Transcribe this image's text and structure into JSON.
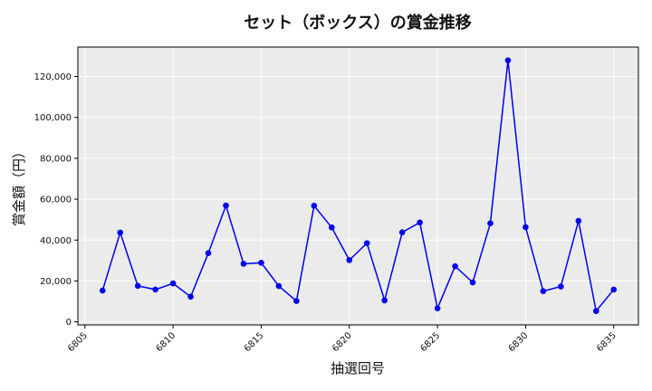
{
  "chart_data": {
    "type": "line",
    "title": "セット（ボックス）の賞金推移",
    "xlabel": "抽選回号",
    "ylabel": "賞金額（円）",
    "x": [
      6806,
      6807,
      6808,
      6809,
      6810,
      6811,
      6812,
      6813,
      6814,
      6815,
      6816,
      6817,
      6818,
      6819,
      6820,
      6821,
      6822,
      6823,
      6824,
      6825,
      6826,
      6827,
      6828,
      6829,
      6830,
      6831,
      6832,
      6833,
      6834,
      6835
    ],
    "series": [
      {
        "values": [
          15300,
          43700,
          17600,
          15800,
          18800,
          12300,
          33600,
          56900,
          28400,
          28900,
          17500,
          10200,
          56800,
          46200,
          30200,
          38500,
          10500,
          43800,
          48600,
          6600,
          27200,
          19300,
          48200,
          127900,
          46300,
          15000,
          17300,
          49400,
          5300,
          15800
        ],
        "color": "#0000ee"
      }
    ],
    "xlim": [
      6804.6,
      6836.4
    ],
    "ylim": [
      -1500,
      134400
    ],
    "xticks": [
      6805,
      6810,
      6815,
      6820,
      6825,
      6830,
      6835
    ],
    "yticks": [
      0,
      20000,
      40000,
      60000,
      80000,
      100000,
      120000
    ],
    "ytick_labels": [
      "0",
      "20,000",
      "40,000",
      "60,000",
      "80,000",
      "100,000",
      "120,000"
    ],
    "grid": true,
    "background": "#ebebeb"
  }
}
